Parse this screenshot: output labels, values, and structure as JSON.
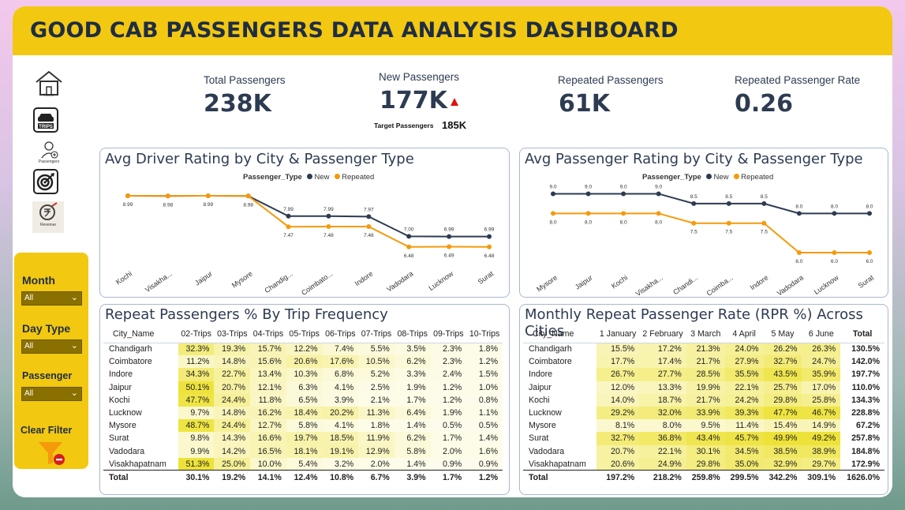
{
  "title": "GOOD CAB PASSENGERS DATA ANALYSIS DASHBOARD",
  "nav": [
    {
      "name": "home-icon",
      "label": "Home"
    },
    {
      "name": "trips-icon",
      "label": "TRIPS"
    },
    {
      "name": "passengers-icon",
      "label": "Passengers"
    },
    {
      "name": "target-icon",
      "label": ""
    },
    {
      "name": "revenue-icon",
      "label": "Revenue"
    }
  ],
  "filters": {
    "month_label": "Month",
    "month_value": "All",
    "daytype_label": "Day Type",
    "daytype_value": "All",
    "passenger_label": "Passenger",
    "passenger_value": "All",
    "clear_label": "Clear Filter"
  },
  "kpis": {
    "total_label": "Total Passengers",
    "total_value": "238K",
    "new_label": "New Passengers",
    "new_value": "177K",
    "target_label": "Target Passengers",
    "target_value": "185K",
    "repeated_label": "Repeated Passengers",
    "repeated_value": "61K",
    "rate_label": "Repeated Passenger Rate",
    "rate_value": "0.26"
  },
  "colors": {
    "new": "#2d3b52",
    "repeated": "#f59a0b",
    "accent": "#f2c811"
  },
  "chart_data": [
    {
      "type": "line",
      "title": "Avg Driver Rating by City & Passenger Type",
      "legend_title": "Passenger_Type",
      "categories": [
        "Kochi",
        "Visakha...",
        "Jaipur",
        "Mysore",
        "Chandig...",
        "Coimbato...",
        "Indore",
        "Vadodara",
        "Lucknow",
        "Surat"
      ],
      "series": [
        {
          "name": "New",
          "values": [
            8.99,
            8.98,
            8.99,
            8.98,
            7.99,
            7.99,
            7.97,
            7.0,
            6.99,
            6.99
          ]
        },
        {
          "name": "Repeated",
          "values": [
            8.99,
            8.98,
            8.99,
            8.98,
            7.47,
            7.48,
            7.48,
            6.48,
            6.49,
            6.48
          ]
        }
      ],
      "labels_new": [
        "",
        "",
        "",
        "",
        "7.99",
        "7.99",
        "7.97",
        "7.00",
        "6.99",
        "6.99"
      ],
      "labels_rep": [
        "8.99",
        "8.98",
        "8.99",
        "8.98",
        "7.47",
        "7.48",
        "7.48",
        "6.48",
        "6.49",
        "6.48"
      ],
      "ylim": [
        6.2,
        9.3
      ]
    },
    {
      "type": "line",
      "title": "Avg Passenger Rating by City & Passenger Type",
      "legend_title": "Passenger_Type",
      "categories": [
        "Mysore",
        "Jaipur",
        "Kochi",
        "Visakha...",
        "Chandi...",
        "Coimba...",
        "Indore",
        "Vadodara",
        "Lucknow",
        "Surat"
      ],
      "series": [
        {
          "name": "New",
          "values": [
            9.0,
            9.0,
            9.0,
            9.0,
            8.5,
            8.5,
            8.5,
            8.0,
            8.0,
            8.0
          ]
        },
        {
          "name": "Repeated",
          "values": [
            8.0,
            8.0,
            8.0,
            8.0,
            7.5,
            7.5,
            7.5,
            6.0,
            6.0,
            6.0
          ]
        }
      ],
      "labels_new": [
        "9.0",
        "9.0",
        "9.0",
        "9.0",
        "8.5",
        "8.5",
        "8.5",
        "8.0",
        "8.0",
        "8.0"
      ],
      "labels_rep": [
        "8.0",
        "8.0",
        "8.0",
        "8.0",
        "7.5",
        "7.5",
        "7.5",
        "6.0",
        "6.0",
        "6.0"
      ],
      "ylim": [
        5.8,
        9.3
      ]
    }
  ],
  "trip_table": {
    "title": "Repeat Passengers % By Trip Frequency",
    "headers": [
      "City_Name",
      "02-Trips",
      "03-Trips",
      "04-Trips",
      "05-Trips",
      "06-Trips",
      "07-Trips",
      "08-Trips",
      "09-Trips",
      "10-Trips"
    ],
    "rows": [
      [
        "Chandigarh",
        "32.3%",
        "19.3%",
        "15.7%",
        "12.2%",
        "7.4%",
        "5.5%",
        "3.5%",
        "2.3%",
        "1.8%"
      ],
      [
        "Coimbatore",
        "11.2%",
        "14.8%",
        "15.6%",
        "20.6%",
        "17.6%",
        "10.5%",
        "6.2%",
        "2.3%",
        "1.2%"
      ],
      [
        "Indore",
        "34.3%",
        "22.7%",
        "13.4%",
        "10.3%",
        "6.8%",
        "5.2%",
        "3.3%",
        "2.4%",
        "1.5%"
      ],
      [
        "Jaipur",
        "50.1%",
        "20.7%",
        "12.1%",
        "6.3%",
        "4.1%",
        "2.5%",
        "1.9%",
        "1.2%",
        "1.0%"
      ],
      [
        "Kochi",
        "47.7%",
        "24.4%",
        "11.8%",
        "6.5%",
        "3.9%",
        "2.1%",
        "1.7%",
        "1.2%",
        "0.8%"
      ],
      [
        "Lucknow",
        "9.7%",
        "14.8%",
        "16.2%",
        "18.4%",
        "20.2%",
        "11.3%",
        "6.4%",
        "1.9%",
        "1.1%"
      ],
      [
        "Mysore",
        "48.7%",
        "24.4%",
        "12.7%",
        "5.8%",
        "4.1%",
        "1.8%",
        "1.4%",
        "0.5%",
        "0.5%"
      ],
      [
        "Surat",
        "9.8%",
        "14.3%",
        "16.6%",
        "19.7%",
        "18.5%",
        "11.9%",
        "6.2%",
        "1.7%",
        "1.4%"
      ],
      [
        "Vadodara",
        "9.9%",
        "14.2%",
        "16.5%",
        "18.1%",
        "19.1%",
        "12.9%",
        "5.8%",
        "2.0%",
        "1.6%"
      ],
      [
        "Visakhapatnam",
        "51.3%",
        "25.0%",
        "10.0%",
        "5.4%",
        "3.2%",
        "2.0%",
        "1.4%",
        "0.9%",
        "0.9%"
      ]
    ],
    "total": [
      "Total",
      "30.1%",
      "19.2%",
      "14.1%",
      "12.4%",
      "10.8%",
      "6.7%",
      "3.9%",
      "1.7%",
      "1.2%"
    ]
  },
  "rpr_table": {
    "title": "Monthly Repeat Passenger Rate (RPR %) Across Cities",
    "headers": [
      "City_Name",
      "1 January",
      "2 February",
      "3 March",
      "4 April",
      "5 May",
      "6 June",
      "Total"
    ],
    "rows": [
      [
        "Chandigarh",
        "15.5%",
        "17.2%",
        "21.3%",
        "24.0%",
        "26.2%",
        "26.3%",
        "130.5%"
      ],
      [
        "Coimbatore",
        "17.7%",
        "17.4%",
        "21.7%",
        "27.9%",
        "32.7%",
        "24.7%",
        "142.0%"
      ],
      [
        "Indore",
        "26.7%",
        "27.7%",
        "28.5%",
        "35.5%",
        "43.5%",
        "35.9%",
        "197.7%"
      ],
      [
        "Jaipur",
        "12.0%",
        "13.3%",
        "19.9%",
        "22.1%",
        "25.7%",
        "17.0%",
        "110.0%"
      ],
      [
        "Kochi",
        "14.0%",
        "18.7%",
        "21.7%",
        "24.2%",
        "29.8%",
        "25.8%",
        "134.3%"
      ],
      [
        "Lucknow",
        "29.2%",
        "32.0%",
        "33.9%",
        "39.3%",
        "47.7%",
        "46.7%",
        "228.8%"
      ],
      [
        "Mysore",
        "8.1%",
        "8.0%",
        "9.5%",
        "11.4%",
        "15.4%",
        "14.9%",
        "67.2%"
      ],
      [
        "Surat",
        "32.7%",
        "36.8%",
        "43.4%",
        "45.7%",
        "49.9%",
        "49.2%",
        "257.8%"
      ],
      [
        "Vadodara",
        "20.7%",
        "22.1%",
        "30.1%",
        "34.5%",
        "38.5%",
        "38.9%",
        "184.8%"
      ],
      [
        "Visakhapatnam",
        "20.6%",
        "24.9%",
        "29.8%",
        "35.0%",
        "32.9%",
        "29.7%",
        "172.9%"
      ]
    ],
    "total": [
      "Total",
      "197.2%",
      "218.2%",
      "259.8%",
      "299.5%",
      "342.2%",
      "309.1%",
      "1626.0%"
    ]
  }
}
